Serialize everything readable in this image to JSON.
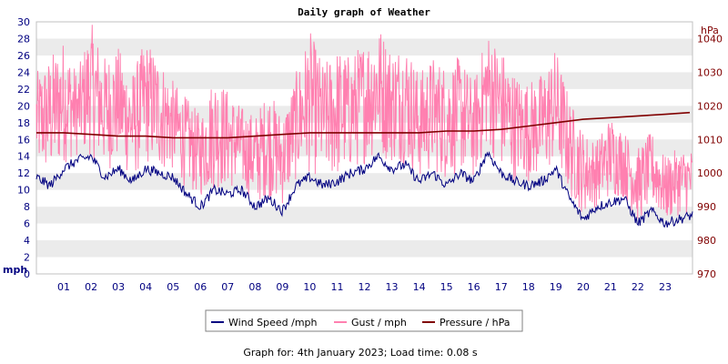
{
  "chart_data": {
    "type": "line",
    "title": "Daily graph of Weather",
    "left_axis": {
      "unit_label": "mph",
      "ylim": [
        0,
        30
      ],
      "ticks": [
        "0",
        "2",
        "4",
        "6",
        "8",
        "10",
        "12",
        "14",
        "16",
        "18",
        "20",
        "22",
        "24",
        "26",
        "28",
        "30"
      ]
    },
    "right_axis": {
      "unit_label": "hPa",
      "ylim": [
        970,
        1045
      ],
      "ticks": [
        "970",
        "980",
        "990",
        "1000",
        "1010",
        "1020",
        "1030",
        "1040"
      ]
    },
    "x_axis": {
      "xlim": [
        0,
        24
      ],
      "ticks": [
        "01",
        "02",
        "03",
        "04",
        "05",
        "06",
        "07",
        "08",
        "09",
        "10",
        "11",
        "12",
        "13",
        "14",
        "15",
        "16",
        "17",
        "18",
        "19",
        "20",
        "21",
        "22",
        "23"
      ]
    },
    "grid": "horizontal bands",
    "legend_placement": "bottom-center",
    "series": [
      {
        "name": "Wind Speed /mph",
        "axis": "left",
        "color": "#000080",
        "x": [
          0,
          0.5,
          1,
          1.5,
          2,
          2.5,
          3,
          3.5,
          4,
          4.5,
          5,
          5.5,
          6,
          6.5,
          7,
          7.5,
          8,
          8.5,
          9,
          9.5,
          10,
          10.5,
          11,
          11.5,
          12,
          12.5,
          13,
          13.5,
          14,
          14.5,
          15,
          15.5,
          16,
          16.5,
          17,
          17.5,
          18,
          18.5,
          19,
          19.5,
          20,
          20.5,
          21,
          21.5,
          22,
          22.5,
          23,
          23.5,
          24
        ],
        "y": [
          11.5,
          10.5,
          12.5,
          13.5,
          14,
          11.5,
          12.5,
          11,
          12.5,
          12,
          11.5,
          9.5,
          8,
          10,
          9.5,
          10,
          8,
          9,
          7.5,
          10.5,
          11.5,
          10.5,
          11,
          12,
          12.5,
          14,
          12.5,
          13,
          11,
          12,
          10.5,
          12,
          11,
          14.5,
          12,
          11,
          10.5,
          11,
          12.5,
          9,
          6.5,
          8,
          8.5,
          9,
          6,
          7.5,
          6,
          6.5,
          7
        ]
      },
      {
        "name": "Gust / mph",
        "axis": "left",
        "color": "#ff80b0",
        "x": [
          0,
          0.5,
          1,
          1.5,
          2,
          2.5,
          3,
          3.5,
          4,
          4.5,
          5,
          5.5,
          6,
          6.5,
          7,
          7.5,
          8,
          8.5,
          9,
          9.5,
          10,
          10.5,
          11,
          11.5,
          12,
          12.5,
          13,
          13.5,
          14,
          14.5,
          15,
          15.5,
          16,
          16.5,
          17,
          17.5,
          18,
          18.5,
          19,
          19.5,
          20,
          20.5,
          21,
          21.5,
          22,
          22.5,
          23,
          23.5,
          24
        ],
        "y_min": [
          12,
          11,
          13,
          14,
          14,
          12,
          13,
          11,
          13,
          12,
          12,
          10,
          9,
          10,
          10,
          10,
          8,
          9,
          8,
          11,
          12,
          11,
          11,
          12,
          13,
          14,
          13,
          13,
          11,
          12,
          11,
          12,
          11,
          15,
          12,
          11,
          11,
          11,
          13,
          9,
          7,
          8,
          9,
          9,
          6,
          8,
          6,
          7,
          7
        ],
        "y_max": [
          24,
          26,
          28,
          24,
          30,
          26,
          27,
          24,
          28,
          26,
          23,
          21,
          19,
          24,
          22,
          20,
          19,
          22,
          19,
          24,
          29,
          25,
          27,
          26,
          28,
          30,
          27,
          28,
          24,
          26,
          25,
          26,
          23,
          29,
          27,
          24,
          23,
          24,
          27,
          21,
          17,
          16,
          19,
          17,
          15,
          17,
          14,
          15,
          15
        ]
      },
      {
        "name": "Pressure / hPa",
        "axis": "right",
        "color": "#800000",
        "x": [
          0,
          1,
          2,
          3,
          4,
          5,
          6,
          7,
          8,
          9,
          10,
          11,
          12,
          13,
          14,
          15,
          16,
          17,
          18,
          19,
          20,
          21,
          22,
          23,
          23.9
        ],
        "y": [
          1012,
          1012,
          1011.5,
          1011,
          1011,
          1010.5,
          1010.5,
          1010.5,
          1011,
          1011.5,
          1012,
          1012,
          1012,
          1012,
          1012,
          1012.5,
          1012.5,
          1013,
          1014,
          1015,
          1016,
          1016.5,
          1017,
          1017.5,
          1018
        ]
      }
    ]
  },
  "legend": {
    "items": [
      {
        "label": "Wind Speed /mph",
        "color": "#000080"
      },
      {
        "label": "Gust / mph",
        "color": "#ff80b0"
      },
      {
        "label": "Pressure / hPa",
        "color": "#800000"
      }
    ]
  },
  "footer": {
    "text": "Graph for: 4th January 2023; Load time: 0.08 s"
  }
}
